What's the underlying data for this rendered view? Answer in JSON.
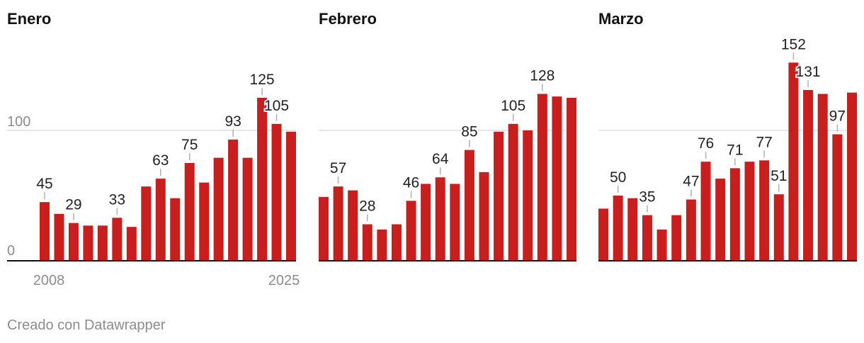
{
  "footer": {
    "credit": "Creado con Datawrapper"
  },
  "colors": {
    "bar": "#c81e1e",
    "grid": "#dedede",
    "axis": "#111111",
    "label": "#222222",
    "tick": "#8c8c8c"
  },
  "chart_data": [
    {
      "type": "bar",
      "title": "Enero",
      "x": [
        2008,
        2009,
        2010,
        2011,
        2012,
        2013,
        2014,
        2015,
        2016,
        2017,
        2018,
        2019,
        2020,
        2021,
        2022,
        2023,
        2024,
        2025
      ],
      "values": [
        45,
        36,
        29,
        27,
        27,
        33,
        26,
        57,
        63,
        48,
        75,
        60,
        79,
        93,
        79,
        125,
        105,
        99
      ],
      "labels": [
        "45",
        "",
        "29",
        "",
        "",
        "33",
        "",
        "",
        "63",
        "",
        "75",
        "",
        "",
        "93",
        "",
        "125",
        "105",
        ""
      ],
      "ylim": [
        0,
        160
      ],
      "y_ticks": [
        0,
        100
      ],
      "y_tick_labels": [
        "0",
        "100"
      ],
      "x_tick_labels": [
        "2008",
        "2025"
      ],
      "grid": true
    },
    {
      "type": "bar",
      "title": "Febrero",
      "x": [
        2008,
        2009,
        2010,
        2011,
        2012,
        2013,
        2014,
        2015,
        2016,
        2017,
        2018,
        2019,
        2020,
        2021,
        2022,
        2023,
        2024,
        2025
      ],
      "values": [
        49,
        57,
        54,
        28,
        24,
        28,
        46,
        59,
        64,
        59,
        85,
        68,
        99,
        105,
        100,
        128,
        126,
        125
      ],
      "labels": [
        "",
        "57",
        "",
        "28",
        "",
        "",
        "46",
        "",
        "64",
        "",
        "85",
        "",
        "",
        "105",
        "",
        "128",
        "",
        ""
      ],
      "ylim": [
        0,
        160
      ],
      "y_ticks": [
        100
      ],
      "grid": true
    },
    {
      "type": "bar",
      "title": "Marzo",
      "x": [
        2008,
        2009,
        2010,
        2011,
        2012,
        2013,
        2014,
        2015,
        2016,
        2017,
        2018,
        2019,
        2020,
        2021,
        2022,
        2023,
        2024,
        2025
      ],
      "values": [
        40,
        50,
        48,
        35,
        24,
        35,
        47,
        76,
        63,
        71,
        76,
        77,
        51,
        152,
        131,
        128,
        97,
        129
      ],
      "labels": [
        "",
        "50",
        "",
        "35",
        "",
        "",
        "47",
        "76",
        "",
        "71",
        "",
        "77",
        "51",
        "152",
        "131",
        "",
        "97",
        ""
      ],
      "ylim": [
        0,
        160
      ],
      "y_ticks": [
        100
      ],
      "grid": true
    }
  ]
}
